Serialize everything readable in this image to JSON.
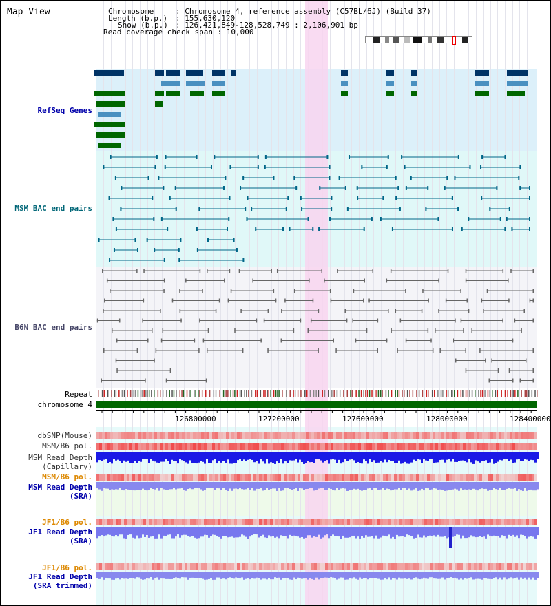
{
  "title": "Map View",
  "info": {
    "chromosome_key": "Chromosome",
    "chromosome_val": ": Chromosome 4, reference assembly (C57BL/6J) (Build 37)",
    "length_key": "Length (b.p.)",
    "length_val": ": 155,630,120",
    "show_key": "Show (b.p.)",
    "show_val": ": 126,421,849-128,528,749 : 2,106,901 bp",
    "coverage": "Read coverage check span : 10,000"
  },
  "tracks": {
    "refseq": "RefSeq Genes",
    "msm_bac": "MSM BAC end pairs",
    "b6n_bac": "B6N BAC end pairs",
    "repeat": "Repeat",
    "chromosome": "chromosome 4",
    "dbsnp": "dbSNP(Mouse)",
    "msm_b6_pol_1": "MSM/B6 pol.",
    "msm_depth_cap_1": "MSM Read Depth",
    "msm_depth_cap_2": "(Capillary)",
    "msm_b6_pol_2": "MSM/B6 pol.",
    "msm_depth_sra_1": "MSM Read Depth",
    "msm_depth_sra_2": "(SRA)",
    "jf1_b6_pol_1": "JF1/B6 pol.",
    "jf1_depth_sra_1": "JF1 Read Depth",
    "jf1_depth_sra_2": "(SRA)",
    "jf1_b6_pol_2": "JF1/B6 pol.",
    "jf1_depth_trim_1": "JF1 Read Depth",
    "jf1_depth_trim_2": "(SRA trimmed)"
  },
  "axis_ticks": [
    "126800000",
    "127200000",
    "127600000",
    "128000000",
    "128400000"
  ],
  "colors": {
    "refseq_bg": "#dcf0fa",
    "msm_bg": "#e0f8f8",
    "b6n_bg": "#f4f4f8",
    "highlight": "#f8d5f0",
    "refseq_label": "#0000aa",
    "msm_label": "#006677",
    "b6n_label": "#444466",
    "pol_label": "#dd8800",
    "depth_label": "#0000aa",
    "chromosome_bar": "#006600"
  }
}
